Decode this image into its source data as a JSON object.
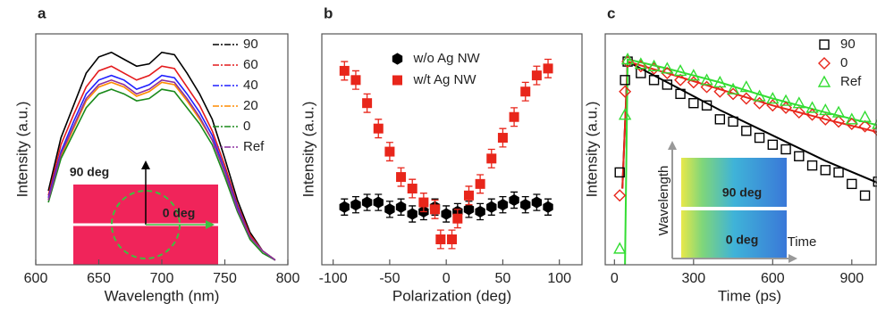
{
  "chart_data": [
    {
      "type": "line",
      "label": "a",
      "xlabel": "Wavelength (nm)",
      "ylabel": "Intensity (a.u.)",
      "xlim": [
        600,
        800
      ],
      "xticks": [
        600,
        650,
        700,
        750,
        800
      ],
      "ylim": [
        0,
        1
      ],
      "legend": "upper right",
      "x": [
        610,
        620,
        630,
        640,
        650,
        660,
        670,
        680,
        690,
        700,
        710,
        720,
        730,
        740,
        750,
        760,
        770,
        780,
        790
      ],
      "series": [
        {
          "name": "90",
          "color": "#000000",
          "values": [
            0.32,
            0.55,
            0.69,
            0.83,
            0.9,
            0.92,
            0.89,
            0.86,
            0.87,
            0.92,
            0.91,
            0.83,
            0.74,
            0.63,
            0.46,
            0.28,
            0.14,
            0.06,
            0.02
          ]
        },
        {
          "name": "60",
          "color": "#e41a1c",
          "values": [
            0.3,
            0.52,
            0.65,
            0.77,
            0.84,
            0.86,
            0.83,
            0.8,
            0.82,
            0.86,
            0.85,
            0.77,
            0.69,
            0.58,
            0.43,
            0.26,
            0.13,
            0.06,
            0.02
          ]
        },
        {
          "name": "40",
          "color": "#1f1fff",
          "values": [
            0.29,
            0.49,
            0.62,
            0.74,
            0.8,
            0.82,
            0.8,
            0.76,
            0.78,
            0.82,
            0.81,
            0.74,
            0.66,
            0.56,
            0.41,
            0.25,
            0.12,
            0.06,
            0.02
          ]
        },
        {
          "name": "20",
          "color": "#ff8c00",
          "values": [
            0.28,
            0.47,
            0.59,
            0.71,
            0.77,
            0.79,
            0.77,
            0.73,
            0.75,
            0.79,
            0.78,
            0.71,
            0.63,
            0.54,
            0.4,
            0.24,
            0.12,
            0.06,
            0.02
          ]
        },
        {
          "name": "0",
          "color": "#1a8a1a",
          "values": [
            0.27,
            0.46,
            0.57,
            0.68,
            0.74,
            0.76,
            0.74,
            0.71,
            0.72,
            0.76,
            0.75,
            0.68,
            0.61,
            0.52,
            0.38,
            0.23,
            0.11,
            0.05,
            0.02
          ]
        },
        {
          "name": "Ref",
          "color": "#8b2fa0",
          "values": [
            0.28,
            0.48,
            0.6,
            0.72,
            0.78,
            0.8,
            0.78,
            0.74,
            0.76,
            0.8,
            0.79,
            0.72,
            0.64,
            0.54,
            0.4,
            0.24,
            0.12,
            0.06,
            0.02
          ]
        }
      ],
      "annotations": [
        "90 deg",
        "0 deg"
      ]
    },
    {
      "type": "scatter",
      "label": "b",
      "xlabel": "Polarization (deg)",
      "ylabel": "Intensity (a.u.)",
      "xlim": [
        -110,
        120
      ],
      "xticks": [
        -100,
        -50,
        0,
        50,
        100
      ],
      "ylim": [
        0,
        1
      ],
      "legend": "upper center",
      "series": [
        {
          "name": "w/o Ag NW",
          "color": "#000000",
          "marker": "hexagon",
          "x": [
            -90,
            -80,
            -70,
            -60,
            -50,
            -40,
            -30,
            -20,
            -10,
            0,
            10,
            20,
            30,
            40,
            50,
            60,
            70,
            80,
            90
          ],
          "values": [
            0.25,
            0.26,
            0.27,
            0.27,
            0.24,
            0.25,
            0.22,
            0.23,
            0.25,
            0.22,
            0.23,
            0.24,
            0.23,
            0.25,
            0.26,
            0.28,
            0.26,
            0.27,
            0.25
          ],
          "errors": [
            0.035,
            0.035,
            0.035,
            0.035,
            0.035,
            0.035,
            0.035,
            0.035,
            0.035,
            0.035,
            0.035,
            0.035,
            0.035,
            0.035,
            0.035,
            0.035,
            0.035,
            0.035,
            0.035
          ]
        },
        {
          "name": "w/t Ag NW",
          "color": "#e8261b",
          "marker": "square",
          "x": [
            -90,
            -80,
            -70,
            -60,
            -50,
            -40,
            -30,
            -20,
            -10,
            -5,
            5,
            10,
            20,
            30,
            40,
            50,
            60,
            70,
            80,
            90
          ],
          "values": [
            0.84,
            0.8,
            0.7,
            0.59,
            0.49,
            0.38,
            0.33,
            0.27,
            0.24,
            0.11,
            0.11,
            0.2,
            0.3,
            0.35,
            0.46,
            0.55,
            0.64,
            0.75,
            0.82,
            0.85
          ],
          "errors": [
            0.04,
            0.04,
            0.04,
            0.04,
            0.04,
            0.04,
            0.04,
            0.04,
            0.04,
            0.04,
            0.04,
            0.04,
            0.04,
            0.04,
            0.04,
            0.04,
            0.04,
            0.04,
            0.04,
            0.04
          ]
        }
      ]
    },
    {
      "type": "scatter",
      "label": "c",
      "xlabel": "Time (ps)",
      "ylabel": "Intensity (a.u.)",
      "xlim": [
        -35,
        1060
      ],
      "xticks": [
        0,
        300,
        600,
        900
      ],
      "ylim": [
        0,
        1
      ],
      "legend": "upper right",
      "series": [
        {
          "name": "90",
          "color": "#000000",
          "marker": "open-square",
          "x": [
            20,
            40,
            50,
            100,
            150,
            200,
            250,
            300,
            350,
            400,
            450,
            500,
            550,
            600,
            650,
            700,
            750,
            800,
            850,
            900,
            950,
            1000,
            1050
          ],
          "values": [
            0.4,
            0.8,
            0.88,
            0.83,
            0.8,
            0.78,
            0.74,
            0.7,
            0.69,
            0.63,
            0.62,
            0.58,
            0.55,
            0.52,
            0.5,
            0.47,
            0.43,
            0.41,
            0.4,
            0.35,
            0.3,
            0.36,
            0.33
          ]
        },
        {
          "name": "0",
          "color": "#e8261b",
          "marker": "open-diamond",
          "x": [
            20,
            40,
            50,
            100,
            150,
            200,
            250,
            300,
            350,
            400,
            450,
            500,
            550,
            600,
            650,
            700,
            750,
            800,
            850,
            900,
            950,
            1000,
            1050
          ],
          "values": [
            0.3,
            0.75,
            0.88,
            0.86,
            0.85,
            0.83,
            0.8,
            0.79,
            0.77,
            0.75,
            0.74,
            0.72,
            0.7,
            0.69,
            0.68,
            0.66,
            0.65,
            0.63,
            0.62,
            0.61,
            0.6,
            0.58,
            0.57
          ]
        },
        {
          "name": "Ref",
          "color": "#33dd33",
          "marker": "open-triangle",
          "x": [
            20,
            40,
            50,
            100,
            150,
            200,
            250,
            300,
            350,
            400,
            450,
            500,
            550,
            600,
            650,
            700,
            750,
            800,
            850,
            900,
            950,
            1000,
            1050
          ],
          "values": [
            0.07,
            0.65,
            0.89,
            0.87,
            0.86,
            0.85,
            0.84,
            0.82,
            0.8,
            0.79,
            0.76,
            0.77,
            0.73,
            0.72,
            0.71,
            0.7,
            0.68,
            0.67,
            0.66,
            0.63,
            0.64,
            0.61,
            0.59
          ]
        }
      ],
      "fits": [
        {
          "color": "#000000",
          "x": [
            30,
            50,
            200,
            400,
            600,
            800,
            1050
          ],
          "values": [
            0.33,
            0.88,
            0.79,
            0.67,
            0.56,
            0.45,
            0.33
          ]
        },
        {
          "color": "#e8261b",
          "x": [
            30,
            50,
            200,
            400,
            600,
            800,
            1050
          ],
          "values": [
            0.33,
            0.88,
            0.83,
            0.76,
            0.69,
            0.63,
            0.56
          ]
        },
        {
          "color": "#33dd33",
          "x": [
            40,
            50,
            200,
            400,
            600,
            800,
            1050
          ],
          "values": [
            0,
            0.89,
            0.85,
            0.79,
            0.72,
            0.66,
            0.59
          ]
        }
      ],
      "annotations": [
        "90 deg",
        "0 deg",
        "Wavelength",
        "Time"
      ]
    }
  ]
}
